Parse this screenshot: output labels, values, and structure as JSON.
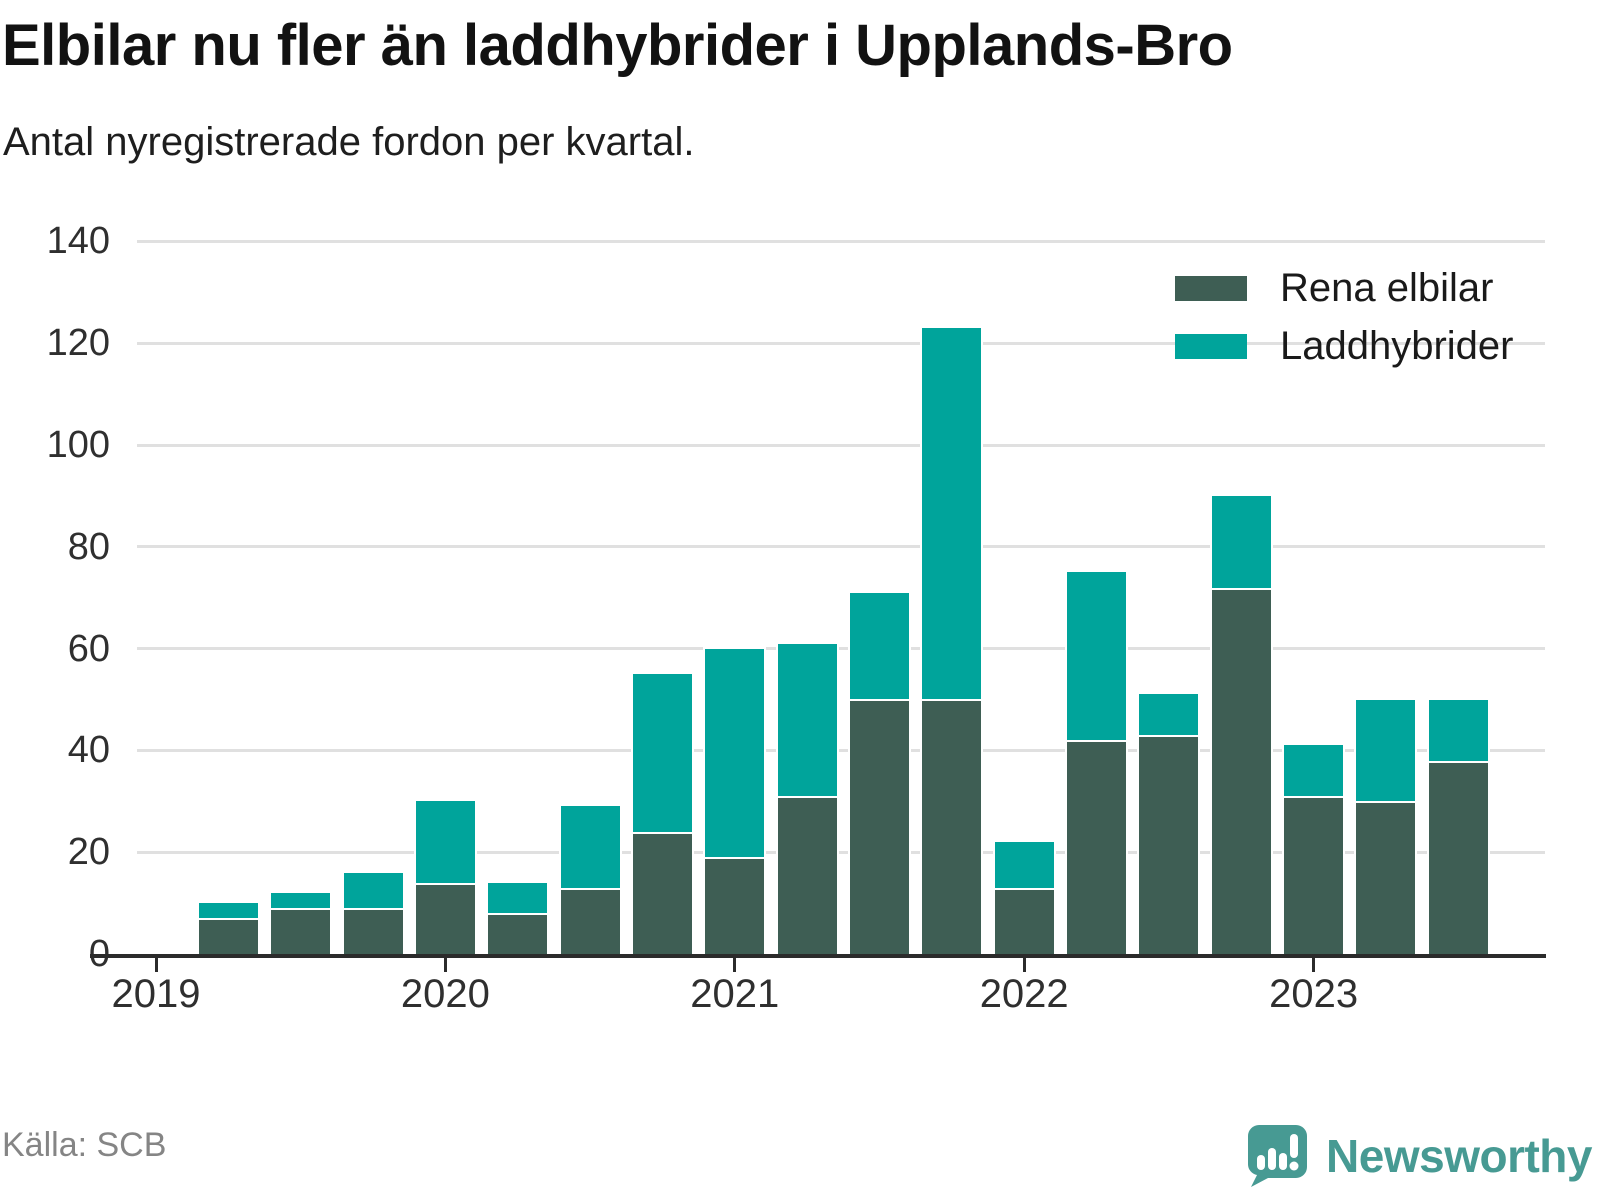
{
  "header": {
    "title": "Elbilar nu fler än laddhybrider i Upplands-Bro",
    "subtitle": "Antal nyregistrerade fordon per kvartal."
  },
  "chart_data": {
    "type": "bar",
    "stacked": true,
    "title": "Elbilar nu fler än laddhybrider i Upplands-Bro",
    "subtitle": "Antal nyregistrerade fordon per kvartal.",
    "x": [
      "2019 K2",
      "2019 K3",
      "2019 K4",
      "2020 K1",
      "2020 K2",
      "2020 K3",
      "2020 K4",
      "2021 K1",
      "2021 K2",
      "2021 K3",
      "2021 K4",
      "2022 K1",
      "2022 K2",
      "2022 K3",
      "2022 K4",
      "2023 K1",
      "2023 K2",
      "2023 K3"
    ],
    "series": [
      {
        "name": "Rena elbilar",
        "color": "#3E5E54",
        "values": [
          7,
          9,
          9,
          14,
          8,
          13,
          24,
          19,
          31,
          50,
          50,
          13,
          42,
          43,
          72,
          31,
          30,
          38
        ]
      },
      {
        "name": "Laddhybrider",
        "color": "#00A49B",
        "values": [
          3,
          3,
          7,
          16,
          6,
          16,
          31,
          41,
          30,
          21,
          73,
          9,
          33,
          8,
          18,
          10,
          20,
          12
        ]
      }
    ],
    "totals": [
      10,
      12,
      16,
      30,
      14,
      29,
      55,
      60,
      61,
      71,
      123,
      22,
      75,
      51,
      90,
      41,
      50,
      50
    ],
    "year_ticks": [
      "2019",
      "2020",
      "2021",
      "2022",
      "2023"
    ],
    "y_ticks": [
      0,
      20,
      40,
      60,
      80,
      100,
      120,
      140
    ],
    "ylim": [
      0,
      140
    ],
    "grid": "horizontal",
    "legend_position": "top-right"
  },
  "footer": {
    "source": "Källa: SCB",
    "brand": "Newsworthy"
  },
  "icons": {
    "brand_icon": "speech-bubble-bar-chart-icon",
    "brand_color": "#479a93"
  }
}
